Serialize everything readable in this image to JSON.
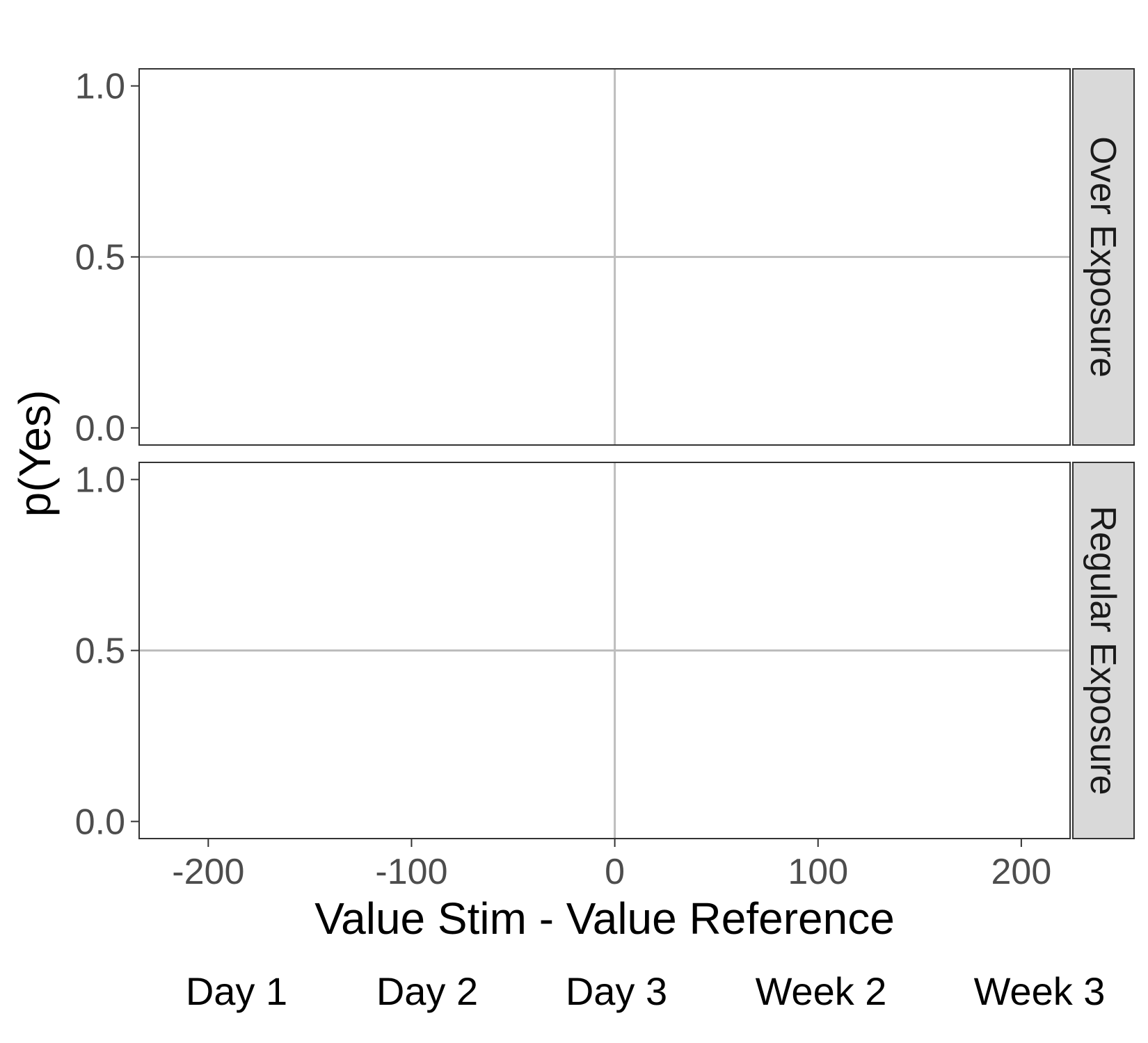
{
  "chart_data": {
    "type": "line",
    "title": "",
    "xlabel": "Value Stim - Value Reference",
    "ylabel": "p(Yes)",
    "xlim": [
      -234,
      224
    ],
    "ylim": [
      -0.05,
      1.05
    ],
    "x_ticks": [
      -200,
      -100,
      0,
      100,
      200
    ],
    "x_tick_labels": [
      "-200",
      "-100",
      "0",
      "100",
      "200"
    ],
    "y_ticks": [
      0.0,
      0.5,
      1.0
    ],
    "y_tick_labels": [
      "0.0",
      "0.5",
      "1.0"
    ],
    "grid": "major lines at x=0 and y=0.5",
    "facets": [
      "Over Exposure",
      "Regular Exposure"
    ],
    "legend": {
      "placement": "bottom",
      "entries": [
        "Day 1",
        "Day 2",
        "Day 3",
        "Week 2",
        "Week 3"
      ]
    },
    "series": []
  }
}
